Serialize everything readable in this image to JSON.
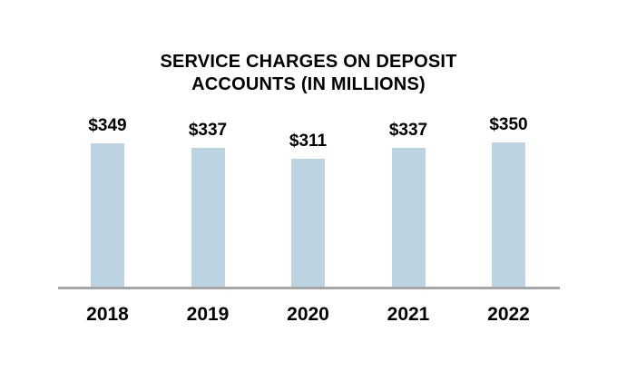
{
  "chart_data": {
    "type": "bar",
    "title": "SERVICE CHARGES ON DEPOSIT ACCOUNTS (IN MILLIONS)",
    "title_lines": [
      "SERVICE CHARGES ON DEPOSIT",
      "ACCOUNTS (IN MILLIONS)"
    ],
    "categories": [
      "2018",
      "2019",
      "2020",
      "2021",
      "2022"
    ],
    "values": [
      349,
      337,
      311,
      337,
      350
    ],
    "value_labels": [
      "$349",
      "$337",
      "$311",
      "$337",
      "$350"
    ],
    "xlabel": "",
    "ylabel": "",
    "ylim": [
      0,
      400
    ],
    "grid": false,
    "legend": false,
    "data_labels_position": "above-bars",
    "colors": {
      "bar_fill": "#BCD4E2",
      "axis_line": "#A6A6A6",
      "text": "#000000",
      "background": "#FFFFFF"
    }
  }
}
